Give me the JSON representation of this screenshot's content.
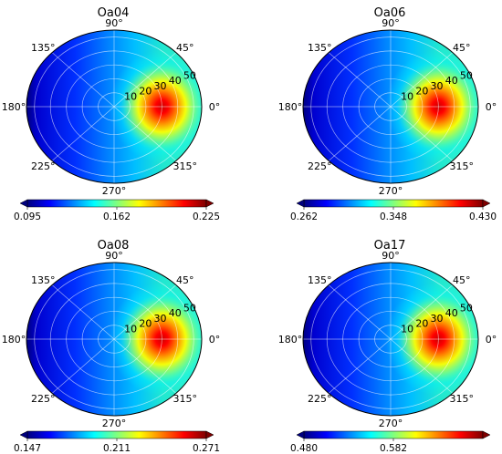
{
  "colormap": [
    "#00007f",
    "#0000ff",
    "#007fff",
    "#00ffff",
    "#7fff7f",
    "#ffff00",
    "#ff7f00",
    "#ff0000",
    "#7f0000"
  ],
  "chart_data": [
    {
      "type": "heatmap",
      "projection": "polar",
      "title": "Oa04",
      "azimuth_ticks": [
        "90°",
        "45°",
        "0°",
        "315°",
        "270°",
        "225°",
        "180°",
        "135°"
      ],
      "radial_ticks": [
        "10",
        "20",
        "30",
        "40",
        "50"
      ],
      "colorbar_ticks": [
        "0.095",
        "0.162",
        "0.225"
      ],
      "hotspot": {
        "azimuth_deg": 0,
        "zenith_deg": 30
      }
    },
    {
      "type": "heatmap",
      "projection": "polar",
      "title": "Oa06",
      "azimuth_ticks": [
        "90°",
        "45°",
        "0°",
        "315°",
        "270°",
        "225°",
        "180°",
        "135°"
      ],
      "radial_ticks": [
        "10",
        "20",
        "30",
        "40",
        "50"
      ],
      "colorbar_ticks": [
        "0.262",
        "0.348",
        "0.430"
      ],
      "hotspot": {
        "azimuth_deg": 0,
        "zenith_deg": 30
      }
    },
    {
      "type": "heatmap",
      "projection": "polar",
      "title": "Oa08",
      "azimuth_ticks": [
        "90°",
        "45°",
        "0°",
        "315°",
        "270°",
        "225°",
        "180°",
        "135°"
      ],
      "radial_ticks": [
        "10",
        "20",
        "30",
        "40",
        "50"
      ],
      "colorbar_ticks": [
        "0.147",
        "0.211",
        "0.271"
      ],
      "hotspot": {
        "azimuth_deg": 0,
        "zenith_deg": 30
      }
    },
    {
      "type": "heatmap",
      "projection": "polar",
      "title": "Oa17",
      "azimuth_ticks": [
        "90°",
        "45°",
        "0°",
        "315°",
        "270°",
        "225°",
        "180°",
        "135°"
      ],
      "radial_ticks": [
        "10",
        "20",
        "30",
        "40",
        "50"
      ],
      "colorbar_ticks": [
        "0.480",
        "0.582"
      ],
      "hotspot": {
        "azimuth_deg": 0,
        "zenith_deg": 30
      }
    }
  ]
}
